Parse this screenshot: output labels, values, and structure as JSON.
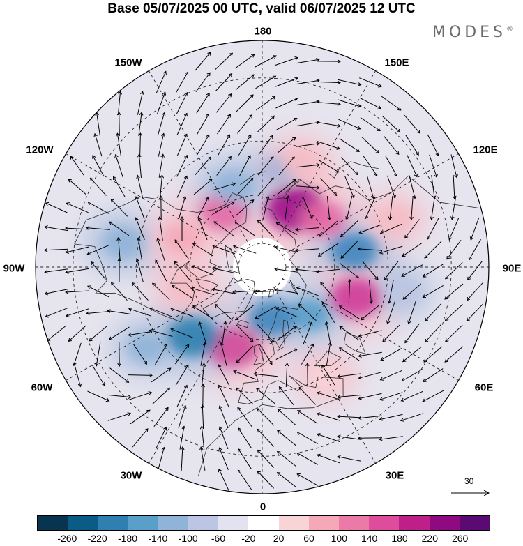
{
  "title": "Base 05/07/2025 00 UTC, valid 06/07/2025 12 UTC",
  "brand": {
    "name": "MODES",
    "mark": "®"
  },
  "longitude_labels": {
    "top": "180",
    "bottom": "0",
    "left": "90W",
    "right": "90E",
    "upper_left_1": "150W",
    "upper_left_2": "120W",
    "upper_right_1": "150E",
    "upper_right_2": "120E",
    "lower_left_1": "60W",
    "lower_left_2": "30W",
    "lower_right_1": "60E",
    "lower_right_2": "30E"
  },
  "reference_vector": {
    "label": "30"
  },
  "colorbar": {
    "colors": [
      "#08344f",
      "#0b5b87",
      "#2f7fb0",
      "#5a9fca",
      "#8fb4d8",
      "#bcc5e3",
      "#e2e2f1",
      "#ffffff",
      "#f9d4d6",
      "#f4a8b8",
      "#ec7aa8",
      "#de4d9b",
      "#bf1f88",
      "#8f0a80",
      "#5a0a72"
    ],
    "tick_labels": [
      "-260",
      "-220",
      "-180",
      "-140",
      "-100",
      "-60",
      "-20",
      "20",
      "60",
      "100",
      "140",
      "180",
      "220",
      "260"
    ]
  },
  "map": {
    "projection": "north-polar-stereographic",
    "anomaly_centers": [
      {
        "lon": 150,
        "lat": 62,
        "value": 250,
        "color": "#a0108a"
      },
      {
        "lon": 128,
        "lat": 58,
        "value": 150,
        "color": "#e56aa6"
      },
      {
        "lon": 100,
        "lat": 52,
        "value": -170,
        "color": "#3f86bf"
      },
      {
        "lon": 72,
        "lat": 50,
        "value": 190,
        "color": "#cf3a98"
      },
      {
        "lon": 45,
        "lat": 62,
        "value": -120,
        "color": "#5a9fca"
      },
      {
        "lon": 10,
        "lat": 68,
        "value": -160,
        "color": "#3f86bf"
      },
      {
        "lon": -20,
        "lat": 55,
        "value": 200,
        "color": "#d24a9a"
      },
      {
        "lon": -45,
        "lat": 50,
        "value": -200,
        "color": "#2f7fb0"
      },
      {
        "lon": -55,
        "lat": 35,
        "value": -90,
        "color": "#8fb4d8"
      },
      {
        "lon": -100,
        "lat": 35,
        "value": -120,
        "color": "#8fb4d8"
      },
      {
        "lon": -110,
        "lat": 55,
        "value": 90,
        "color": "#f4a8b8"
      },
      {
        "lon": -145,
        "lat": 62,
        "value": 160,
        "color": "#e56aa6"
      },
      {
        "lon": -160,
        "lat": 55,
        "value": -120,
        "color": "#8fb4d8"
      },
      {
        "lon": 170,
        "lat": 50,
        "value": -80,
        "color": "#a8b4d8"
      },
      {
        "lon": 160,
        "lat": 45,
        "value": 70,
        "color": "#f4bcc4"
      },
      {
        "lon": -75,
        "lat": 58,
        "value": 80,
        "color": "#f4bcc4"
      },
      {
        "lon": 110,
        "lat": 35,
        "value": 60,
        "color": "#f4bcc4"
      },
      {
        "lon": 80,
        "lat": 35,
        "value": -60,
        "color": "#bcc5e3"
      },
      {
        "lon": 30,
        "lat": 40,
        "value": 50,
        "color": "#f9d4d6"
      }
    ]
  }
}
